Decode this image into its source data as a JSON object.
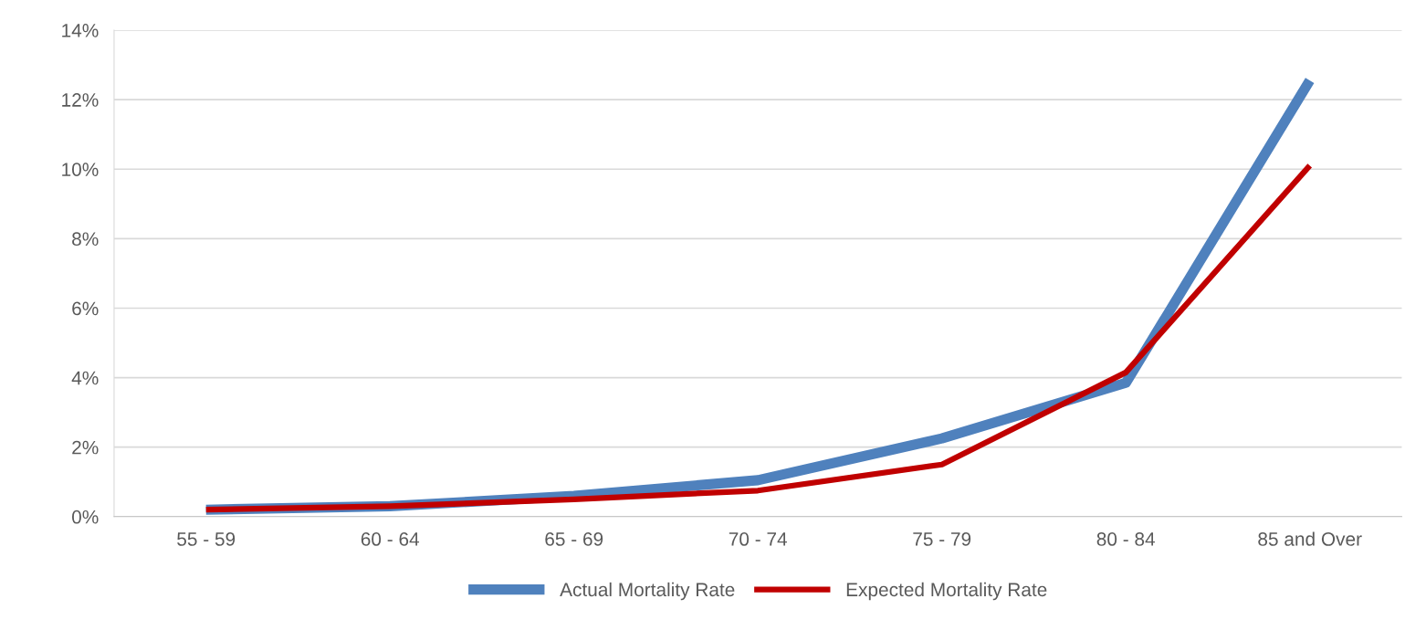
{
  "chart_data": {
    "type": "line",
    "categories": [
      "55 - 59",
      "60 - 64",
      "65 - 69",
      "70 - 74",
      "75 - 79",
      "80 - 84",
      "85 and Over"
    ],
    "series": [
      {
        "name": "Actual Mortality Rate",
        "color": "#4f81bd",
        "values": [
          0.2,
          0.3,
          0.6,
          1.05,
          2.25,
          3.85,
          12.55
        ]
      },
      {
        "name": "Expected Mortality Rate",
        "color": "#c00000",
        "values": [
          0.2,
          0.3,
          0.5,
          0.75,
          1.5,
          4.15,
          10.1
        ]
      }
    ],
    "ylim": [
      0,
      14
    ],
    "yticks": [
      {
        "value": 0,
        "label": "0%"
      },
      {
        "value": 2,
        "label": "2%"
      },
      {
        "value": 4,
        "label": "4%"
      },
      {
        "value": 6,
        "label": "6%"
      },
      {
        "value": 8,
        "label": "8%"
      },
      {
        "value": 10,
        "label": "10%"
      },
      {
        "value": 12,
        "label": "12%"
      },
      {
        "value": 14,
        "label": "14%"
      }
    ],
    "grid": "y",
    "legend": "bottom",
    "marker": "none",
    "line_style": "solid"
  }
}
